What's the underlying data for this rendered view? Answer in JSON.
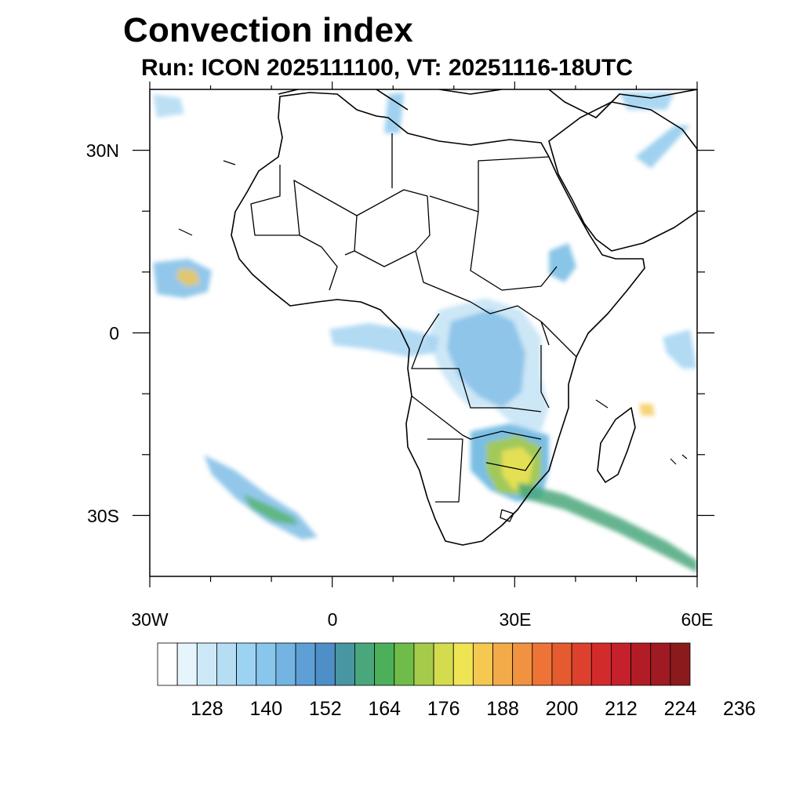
{
  "title": "Convection index",
  "subtitle": "Run: ICON 2025111100,  VT: 20251116-18UTC",
  "map": {
    "lon_range": [
      -30,
      60
    ],
    "lat_range": [
      -40,
      40
    ],
    "x_tick_labels": [
      "30W",
      "0",
      "30E",
      "60E"
    ],
    "y_tick_labels": [
      "30N",
      "0",
      "30S"
    ]
  },
  "colorbar": {
    "colors": [
      "#ffffff",
      "#e6f4fb",
      "#cde9f7",
      "#b5def5",
      "#9dd3f2",
      "#88c6ec",
      "#74b4e3",
      "#5e9fd6",
      "#4f8fc8",
      "#4796a2",
      "#4aa77b",
      "#4cb05a",
      "#6fbc4a",
      "#a6cb4a",
      "#d4dc4e",
      "#efe454",
      "#f5c852",
      "#f3ab4a",
      "#f19240",
      "#ed7436",
      "#e65a2f",
      "#dd412d",
      "#d32b2c",
      "#c4212c",
      "#b21c27",
      "#9f1a22",
      "#8b1a1c"
    ],
    "labels": [
      "128",
      "140",
      "152",
      "164",
      "176",
      "188",
      "200",
      "212",
      "224",
      "236"
    ]
  }
}
